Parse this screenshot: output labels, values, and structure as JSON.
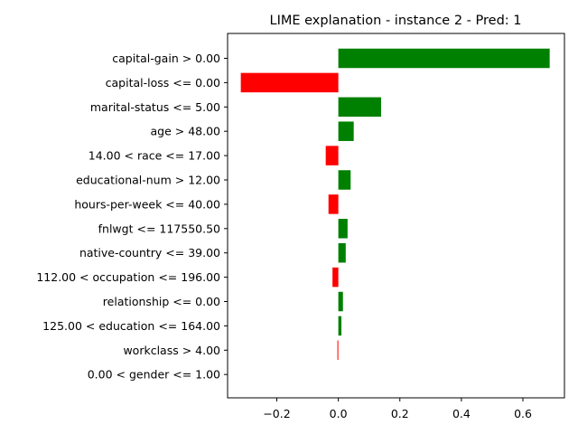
{
  "chart_data": {
    "type": "bar",
    "orientation": "horizontal",
    "title": "LIME explanation - instance 2 - Pred: 1",
    "xlabel": "",
    "ylabel": "",
    "categories": [
      "capital-gain > 0.00",
      "capital-loss <= 0.00",
      "marital-status <= 5.00",
      "age > 48.00",
      "14.00 < race <= 17.00",
      "educational-num > 12.00",
      "hours-per-week <= 40.00",
      "fnlwgt <= 117550.50",
      "native-country <= 39.00",
      "112.00 < occupation <= 196.00",
      "relationship <= 0.00",
      "125.00 < education <= 164.00",
      "workclass > 4.00",
      "0.00 < gender <= 1.00"
    ],
    "values": [
      0.687,
      -0.317,
      0.139,
      0.05,
      -0.041,
      0.04,
      -0.032,
      0.03,
      0.024,
      -0.019,
      0.015,
      0.01,
      -0.003,
      0.0
    ],
    "xlim": [
      -0.36,
      0.735
    ],
    "xticks": [
      "−0.2",
      "0.0",
      "0.2",
      "0.4",
      "0.6"
    ],
    "xtick_values": [
      -0.2,
      0.0,
      0.2,
      0.4,
      0.6
    ],
    "colors": {
      "positive": "#008000",
      "negative": "#ff0000"
    },
    "grid": false,
    "legend": "none"
  }
}
